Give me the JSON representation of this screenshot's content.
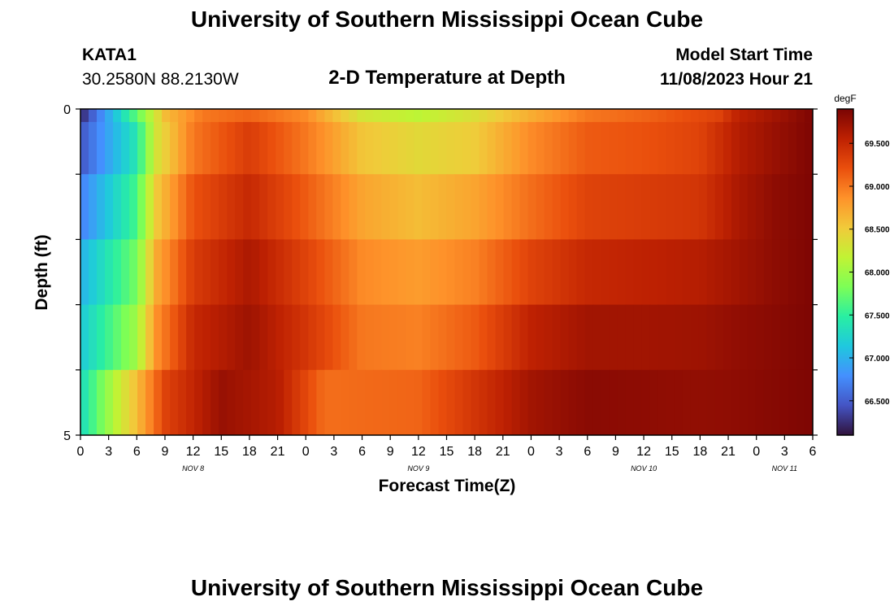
{
  "page": {
    "title": "University of Southern Mississippi Ocean Cube",
    "footer_title": "University of Southern Mississippi Ocean Cube",
    "station": "KATA1",
    "coords": "30.2580N  88.2130W",
    "subtitle": "2-D Temperature at Depth",
    "model_start_label": "Model Start Time",
    "model_start_value": "11/08/2023 Hour 21"
  },
  "chart_data": {
    "type": "heatmap",
    "xlabel": "Forecast Time(Z)",
    "ylabel": "Depth (ft)",
    "x": [
      0,
      3,
      6,
      9,
      12,
      15,
      18,
      21,
      24,
      27,
      30,
      33,
      36,
      39,
      42,
      45,
      48,
      51,
      54,
      57,
      60,
      63,
      66,
      69,
      72,
      75,
      78
    ],
    "x_tick_labels": [
      "0",
      "3",
      "6",
      "9",
      "12",
      "15",
      "18",
      "21",
      "0",
      "3",
      "6",
      "9",
      "12",
      "15",
      "18",
      "21",
      "0",
      "3",
      "6",
      "9",
      "12",
      "15",
      "18",
      "21",
      "0",
      "3",
      "6"
    ],
    "xlim": [
      0,
      78
    ],
    "date_labels": [
      {
        "label": "NOV 8",
        "x": 12
      },
      {
        "label": "NOV 9",
        "x": 36
      },
      {
        "label": "NOV 10",
        "x": 60
      },
      {
        "label": "NOV 11",
        "x": 75
      }
    ],
    "y_tick_labels": [
      "0",
      "5"
    ],
    "ylim": [
      0,
      5
    ],
    "depth_levels": 5,
    "colorbar": {
      "label": "degF",
      "range": [
        66.1,
        69.9
      ],
      "ticks": [
        "66.500",
        "67.000",
        "67.500",
        "68.000",
        "68.500",
        "69.000",
        "69.500"
      ],
      "tick_values": [
        66.5,
        67.0,
        67.5,
        68.0,
        68.5,
        69.0,
        69.5
      ],
      "colormap": [
        "#30123b",
        "#4454c4",
        "#4490fe",
        "#1fc8de",
        "#29efa2",
        "#7dfe56",
        "#c1f334",
        "#f1ca3a",
        "#fe922a",
        "#ea4f0d",
        "#be2102",
        "#7a0403"
      ]
    },
    "columns_per_row": 90,
    "rows": [
      {
        "depth_band": "0.0",
        "anchors": [
          [
            0,
            66.2
          ],
          [
            6,
            67.7
          ],
          [
            9,
            68.6
          ],
          [
            13,
            69.0
          ],
          [
            18,
            69.1
          ],
          [
            24,
            68.9
          ],
          [
            30,
            68.3
          ],
          [
            36,
            68.15
          ],
          [
            42,
            68.35
          ],
          [
            48,
            68.7
          ],
          [
            54,
            69.0
          ],
          [
            60,
            69.1
          ],
          [
            64,
            69.2
          ],
          [
            68,
            69.3
          ],
          [
            70,
            69.55
          ],
          [
            74,
            69.7
          ],
          [
            78,
            69.88
          ]
        ]
      },
      {
        "depth_band": "0.5",
        "anchors": [
          [
            0,
            66.45
          ],
          [
            6,
            67.4
          ],
          [
            8,
            68.3
          ],
          [
            12,
            69.0
          ],
          [
            18,
            69.35
          ],
          [
            24,
            69.0
          ],
          [
            30,
            68.55
          ],
          [
            36,
            68.4
          ],
          [
            42,
            68.5
          ],
          [
            48,
            68.9
          ],
          [
            54,
            69.15
          ],
          [
            60,
            69.2
          ],
          [
            66,
            69.3
          ],
          [
            70,
            69.6
          ],
          [
            74,
            69.75
          ],
          [
            78,
            69.88
          ]
        ]
      },
      {
        "depth_band": "1.5",
        "anchors": [
          [
            0,
            66.7
          ],
          [
            6,
            67.6
          ],
          [
            8,
            68.5
          ],
          [
            12,
            69.2
          ],
          [
            18,
            69.5
          ],
          [
            24,
            69.15
          ],
          [
            30,
            68.75
          ],
          [
            36,
            68.6
          ],
          [
            42,
            68.75
          ],
          [
            48,
            69.05
          ],
          [
            54,
            69.3
          ],
          [
            60,
            69.35
          ],
          [
            66,
            69.4
          ],
          [
            70,
            69.65
          ],
          [
            74,
            69.8
          ],
          [
            78,
            69.88
          ]
        ]
      },
      {
        "depth_band": "2.5",
        "anchors": [
          [
            0,
            67.0
          ],
          [
            6,
            67.8
          ],
          [
            8,
            68.7
          ],
          [
            12,
            69.35
          ],
          [
            18,
            69.65
          ],
          [
            24,
            69.3
          ],
          [
            30,
            68.9
          ],
          [
            36,
            68.8
          ],
          [
            42,
            68.95
          ],
          [
            48,
            69.3
          ],
          [
            54,
            69.5
          ],
          [
            60,
            69.55
          ],
          [
            66,
            69.6
          ],
          [
            70,
            69.7
          ],
          [
            74,
            69.8
          ],
          [
            78,
            69.88
          ]
        ]
      },
      {
        "depth_band": "3.5",
        "anchors": [
          [
            0,
            67.15
          ],
          [
            6,
            68.0
          ],
          [
            8,
            68.85
          ],
          [
            12,
            69.5
          ],
          [
            18,
            69.72
          ],
          [
            24,
            69.4
          ],
          [
            30,
            69.0
          ],
          [
            36,
            68.95
          ],
          [
            42,
            69.15
          ],
          [
            48,
            69.55
          ],
          [
            54,
            69.7
          ],
          [
            60,
            69.7
          ],
          [
            66,
            69.72
          ],
          [
            70,
            69.78
          ],
          [
            74,
            69.83
          ],
          [
            78,
            69.88
          ]
        ]
      },
      {
        "depth_band": "4.5",
        "anchors": [
          [
            0,
            67.3
          ],
          [
            4,
            68.2
          ],
          [
            6,
            68.6
          ],
          [
            9,
            69.3
          ],
          [
            15,
            69.75
          ],
          [
            21,
            69.6
          ],
          [
            26,
            69.05
          ],
          [
            36,
            69.1
          ],
          [
            42,
            69.4
          ],
          [
            48,
            69.7
          ],
          [
            54,
            69.82
          ],
          [
            60,
            69.8
          ],
          [
            66,
            69.78
          ],
          [
            70,
            69.8
          ],
          [
            74,
            69.84
          ],
          [
            78,
            69.88
          ]
        ]
      }
    ]
  }
}
